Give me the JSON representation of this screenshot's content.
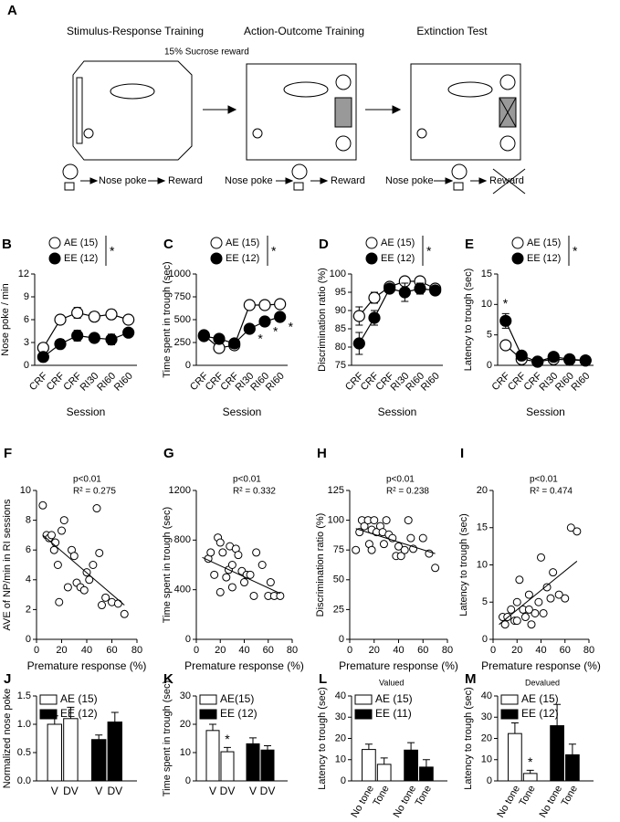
{
  "figure_a": {
    "label": "A",
    "stages": [
      "Stimulus-Response Training",
      "Action-Outcome Training",
      "Extinction Test"
    ],
    "reward_note": "15% Sucrose reward",
    "flows": [
      [
        "Nose poke",
        "Reward"
      ],
      [
        "Nose poke",
        "Reward"
      ],
      [
        "Nose poke",
        "Reward"
      ]
    ]
  },
  "chart_data": [
    {
      "type": "line",
      "label": "B",
      "ylabel": "Nose poke / min",
      "xlabel": "Session",
      "legend_note": "*",
      "categories": [
        "CRF",
        "CRF",
        "CRF",
        "RI30",
        "RI60",
        "RI60"
      ],
      "ylim": [
        0,
        12
      ],
      "yticks": [
        0,
        3,
        6,
        9,
        12
      ],
      "series": [
        {
          "name": "AE (15)",
          "color": "#ffffff",
          "values": [
            2.3,
            6.0,
            6.9,
            6.4,
            6.7,
            6.0
          ],
          "errors": [
            0.4,
            0.6,
            0.7,
            0.6,
            0.6,
            0.6
          ]
        },
        {
          "name": "EE (12)",
          "color": "#000000",
          "values": [
            1.1,
            2.8,
            3.9,
            3.6,
            3.4,
            4.3
          ],
          "errors": [
            0.3,
            0.6,
            0.7,
            0.6,
            0.7,
            0.5
          ]
        }
      ]
    },
    {
      "type": "line",
      "label": "C",
      "ylabel": "Time spent in trough (sec)",
      "xlabel": "Session",
      "legend_note": "*",
      "categories": [
        "CRF",
        "CRF",
        "CRF",
        "RI30",
        "RI60",
        "RI60"
      ],
      "ylim": [
        0,
        1000
      ],
      "yticks": [
        0,
        250,
        500,
        750,
        1000
      ],
      "series": [
        {
          "name": "AE (15)",
          "color": "#ffffff",
          "values": [
            330,
            190,
            220,
            660,
            660,
            670
          ],
          "errors": [
            30,
            30,
            30,
            40,
            30,
            30
          ]
        },
        {
          "name": "EE (12)",
          "color": "#000000",
          "values": [
            320,
            290,
            240,
            400,
            480,
            530
          ],
          "errors": [
            30,
            40,
            30,
            40,
            50,
            40
          ],
          "significance": [
            null,
            null,
            null,
            "*",
            "*",
            "*"
          ]
        }
      ]
    },
    {
      "type": "line",
      "label": "D",
      "ylabel": "Discrimination ratio (%)",
      "xlabel": "Session",
      "legend_note": "*",
      "categories": [
        "CRF",
        "CRF",
        "CRF",
        "RI30",
        "RI60",
        "RI60"
      ],
      "ylim": [
        75,
        100
      ],
      "yticks": [
        75,
        80,
        85,
        90,
        95,
        100
      ],
      "series": [
        {
          "name": "AE (15)",
          "color": "#ffffff",
          "values": [
            88.5,
            93.5,
            96.5,
            98,
            98,
            96
          ],
          "errors": [
            2.5,
            1.5,
            0.8,
            0.8,
            0.8,
            0.8
          ]
        },
        {
          "name": "EE (12)",
          "color": "#000000",
          "values": [
            81,
            88,
            96,
            95,
            96,
            95.5
          ],
          "errors": [
            3,
            2,
            1,
            2.5,
            1.5,
            1.2
          ]
        }
      ]
    },
    {
      "type": "line",
      "label": "E",
      "ylabel": "Latency to trough (sec)",
      "xlabel": "Session",
      "legend_note": "*",
      "categories": [
        "CRF",
        "CRF",
        "CRF",
        "RI30",
        "RI60",
        "RI60"
      ],
      "ylim": [
        0,
        15
      ],
      "yticks": [
        0,
        5,
        10,
        15
      ],
      "series": [
        {
          "name": "AE (15)",
          "color": "#ffffff",
          "values": [
            3.3,
            1.0,
            0.6,
            1.0,
            0.9,
            0.8
          ],
          "errors": [
            0.7,
            0.2,
            0.1,
            0.2,
            0.2,
            0.1
          ]
        },
        {
          "name": "EE (12)",
          "color": "#000000",
          "values": [
            7.3,
            1.6,
            0.6,
            1.4,
            1.0,
            0.8
          ],
          "errors": [
            1.2,
            0.3,
            0.1,
            0.3,
            0.2,
            0.1
          ],
          "significance": [
            "*",
            null,
            null,
            null,
            null,
            null
          ]
        }
      ]
    },
    {
      "type": "scatter",
      "label": "F",
      "ylabel": "AVE of NP/min in RI sessions",
      "xlabel": "Premature response (%)",
      "annotations": [
        "p<0.01",
        "R² = 0.275"
      ],
      "xlim": [
        0,
        80
      ],
      "xticks": [
        0,
        20,
        40,
        60,
        80
      ],
      "ylim": [
        0,
        10
      ],
      "yticks": [
        0,
        2,
        4,
        6,
        8,
        10
      ],
      "x": [
        5,
        8,
        10,
        12,
        14,
        15,
        17,
        18,
        20,
        22,
        25,
        28,
        30,
        32,
        35,
        38,
        40,
        42,
        45,
        48,
        50,
        52,
        55,
        60,
        65,
        70
      ],
      "y": [
        9,
        7,
        6.8,
        7,
        6,
        6.5,
        5,
        2.5,
        7.3,
        8,
        3.5,
        6,
        5.6,
        3.8,
        3.5,
        3.3,
        4.5,
        4,
        5,
        8.8,
        5.8,
        2.3,
        2.8,
        2.5,
        2.4,
        1.7
      ],
      "fit": {
        "x": [
          5,
          70
        ],
        "y": [
          7,
          2.3
        ]
      }
    },
    {
      "type": "scatter",
      "label": "G",
      "ylabel": "Time spent in trough (sec)",
      "xlabel": "Premature response (%)",
      "annotations": [
        "p<0.01",
        "R² = 0.332"
      ],
      "xlim": [
        0,
        80
      ],
      "xticks": [
        0,
        20,
        40,
        60,
        80
      ],
      "ylim": [
        0,
        1200
      ],
      "yticks": [
        0,
        400,
        800,
        1200
      ],
      "x": [
        10,
        12,
        15,
        18,
        20,
        20,
        22,
        25,
        27,
        28,
        30,
        30,
        33,
        35,
        38,
        40,
        42,
        45,
        48,
        50,
        55,
        60,
        62,
        65,
        70
      ],
      "y": [
        650,
        700,
        520,
        820,
        780,
        380,
        700,
        500,
        560,
        750,
        600,
        420,
        730,
        680,
        550,
        460,
        520,
        520,
        350,
        700,
        600,
        350,
        460,
        350,
        350
      ],
      "fit": {
        "x": [
          5,
          70
        ],
        "y": [
          660,
          370
        ]
      }
    },
    {
      "type": "scatter",
      "label": "H",
      "ylabel": "Discrimination ratio (%)",
      "xlabel": "Premature response (%)",
      "annotations": [
        "p<0.01",
        "R² = 0.238"
      ],
      "xlim": [
        0,
        80
      ],
      "xticks": [
        0,
        20,
        40,
        60,
        80
      ],
      "ylim": [
        0,
        125
      ],
      "yticks": [
        0,
        25,
        50,
        75,
        100,
        125
      ],
      "x": [
        5,
        8,
        10,
        12,
        15,
        16,
        18,
        18,
        20,
        22,
        25,
        27,
        28,
        30,
        32,
        35,
        38,
        40,
        42,
        45,
        48,
        50,
        52,
        60,
        65,
        70
      ],
      "y": [
        75,
        90,
        100,
        95,
        100,
        80,
        92,
        75,
        100,
        90,
        95,
        90,
        80,
        100,
        88,
        85,
        70,
        78,
        70,
        75,
        100,
        85,
        76,
        85,
        72,
        60
      ],
      "fit": {
        "x": [
          5,
          70
        ],
        "y": [
          93,
          72
        ]
      }
    },
    {
      "type": "scatter",
      "label": "I",
      "ylabel": "Latency to trough (sec)",
      "xlabel": "Premature response (%)",
      "annotations": [
        "p<0.01",
        "R² = 0.474"
      ],
      "xlim": [
        0,
        80
      ],
      "xticks": [
        0,
        20,
        40,
        60,
        80
      ],
      "ylim": [
        0,
        20
      ],
      "yticks": [
        0,
        5,
        10,
        15,
        20
      ],
      "x": [
        8,
        10,
        12,
        15,
        18,
        20,
        22,
        25,
        27,
        30,
        32,
        35,
        38,
        40,
        42,
        45,
        48,
        50,
        55,
        60,
        65,
        70,
        20,
        30
      ],
      "y": [
        3,
        2,
        3,
        4,
        2.5,
        5,
        8,
        4,
        3,
        6,
        2,
        3.5,
        5,
        11,
        3.5,
        7,
        5.5,
        9,
        6,
        5.5,
        15,
        14.5,
        2.5,
        4
      ],
      "fit": {
        "x": [
          5,
          70
        ],
        "y": [
          2,
          10.5
        ]
      }
    },
    {
      "type": "bar",
      "label": "J",
      "ylabel": "Normalized nose poke",
      "categories": [
        "V",
        "DV",
        "V",
        "DV"
      ],
      "ylim": [
        0,
        1.5
      ],
      "yticks": [
        {
          "value": 0,
          "label": "0.0"
        },
        0.5,
        {
          "value": 1,
          "label": "1.0"
        },
        1.5
      ],
      "series": [
        {
          "name": "AE (15)",
          "color": "#ffffff",
          "values": [
            1.0,
            1.1,
            null,
            null
          ],
          "errors": [
            0.15,
            0.2,
            null,
            null
          ]
        },
        {
          "name": "EE (12)",
          "color": "#000000",
          "values": [
            null,
            null,
            0.73,
            1.04
          ],
          "errors": [
            null,
            null,
            0.08,
            0.17
          ]
        }
      ]
    },
    {
      "type": "bar",
      "label": "K",
      "ylabel": "Time spent in trough (sec)",
      "categories": [
        "V",
        "DV",
        "V",
        "DV"
      ],
      "ylim": [
        0,
        30
      ],
      "yticks": [
        0,
        10,
        20,
        30
      ],
      "series": [
        {
          "name": "AE(15)",
          "color": "#ffffff",
          "values": [
            17.8,
            10.3,
            null,
            null
          ],
          "errors": [
            2.2,
            1.5,
            null,
            null
          ],
          "significance": [
            null,
            "*",
            null,
            null
          ]
        },
        {
          "name": "EE (12)",
          "color": "#000000",
          "values": [
            null,
            null,
            13.1,
            10.9
          ],
          "errors": [
            null,
            null,
            2.1,
            1.5
          ]
        }
      ]
    },
    {
      "type": "bar",
      "label": "L",
      "title": "Valued",
      "ylabel": "Latency to trough (sec)",
      "categories": [
        "No tone",
        "Tone",
        "No tone",
        "Tone"
      ],
      "ylim": [
        0,
        40
      ],
      "yticks": [
        0,
        10,
        20,
        30,
        40
      ],
      "series": [
        {
          "name": "AE (15)",
          "color": "#ffffff",
          "values": [
            14.8,
            7.8,
            null,
            null
          ],
          "errors": [
            2.5,
            3,
            null,
            null
          ]
        },
        {
          "name": "EE (11)",
          "color": "#000000",
          "values": [
            null,
            null,
            14.5,
            6.5
          ],
          "errors": [
            null,
            null,
            3.5,
            3.5
          ]
        }
      ]
    },
    {
      "type": "bar",
      "label": "M",
      "title": "Devalued",
      "ylabel": "Latency to trough (sec)",
      "categories": [
        "No tone",
        "Tone",
        "No tone",
        "Tone"
      ],
      "ylim": [
        0,
        40
      ],
      "yticks": [
        0,
        10,
        20,
        30,
        40
      ],
      "series": [
        {
          "name": "AE (15)",
          "color": "#ffffff",
          "values": [
            22.3,
            3.5,
            null,
            null
          ],
          "errors": [
            5,
            1.5,
            null,
            null
          ],
          "significance": [
            null,
            "*",
            null,
            null
          ]
        },
        {
          "name": "EE (12)",
          "color": "#000000",
          "values": [
            null,
            null,
            26,
            12.3
          ],
          "errors": [
            null,
            null,
            10,
            5
          ]
        }
      ]
    }
  ]
}
